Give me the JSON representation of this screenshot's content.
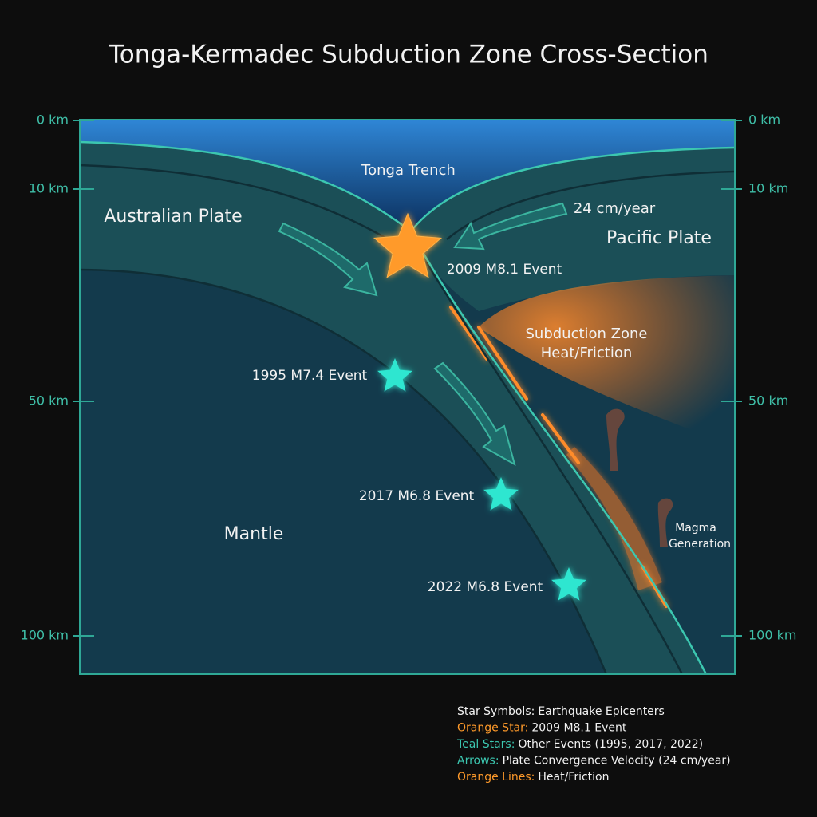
{
  "title": "Tonga-Kermadec Subduction Zone Cross-Section",
  "depth_labels": [
    "0 km",
    "10 km",
    "50 km",
    "100 km"
  ],
  "labels": {
    "trench": "Tonga Trench",
    "australian_plate": "Australian Plate",
    "pacific_plate": "Pacific Plate",
    "mantle": "Mantle",
    "velocity": "24 cm/year",
    "heat": [
      "Subduction Zone",
      "Heat/Friction"
    ],
    "magma": [
      "Magma",
      "Generation"
    ]
  },
  "events": [
    {
      "label": "2009 M8.1 Event"
    },
    {
      "label": "1995 M7.4 Event"
    },
    {
      "label": "2017 M6.8 Event"
    },
    {
      "label": "2022 M6.8 Event"
    }
  ],
  "legend": [
    {
      "key": "Star Symbols:",
      "text": "Earthquake Epicenters"
    },
    {
      "key": "Orange Star:",
      "text": "2009 M8.1 Event"
    },
    {
      "key": "Teal Stars:",
      "text": "Other Events (1995, 2017, 2022)"
    },
    {
      "key": "Arrows:",
      "text": "Plate Convergence Velocity (24 cm/year)"
    },
    {
      "key": "Orange Lines:",
      "text": "Heat/Friction"
    }
  ]
}
